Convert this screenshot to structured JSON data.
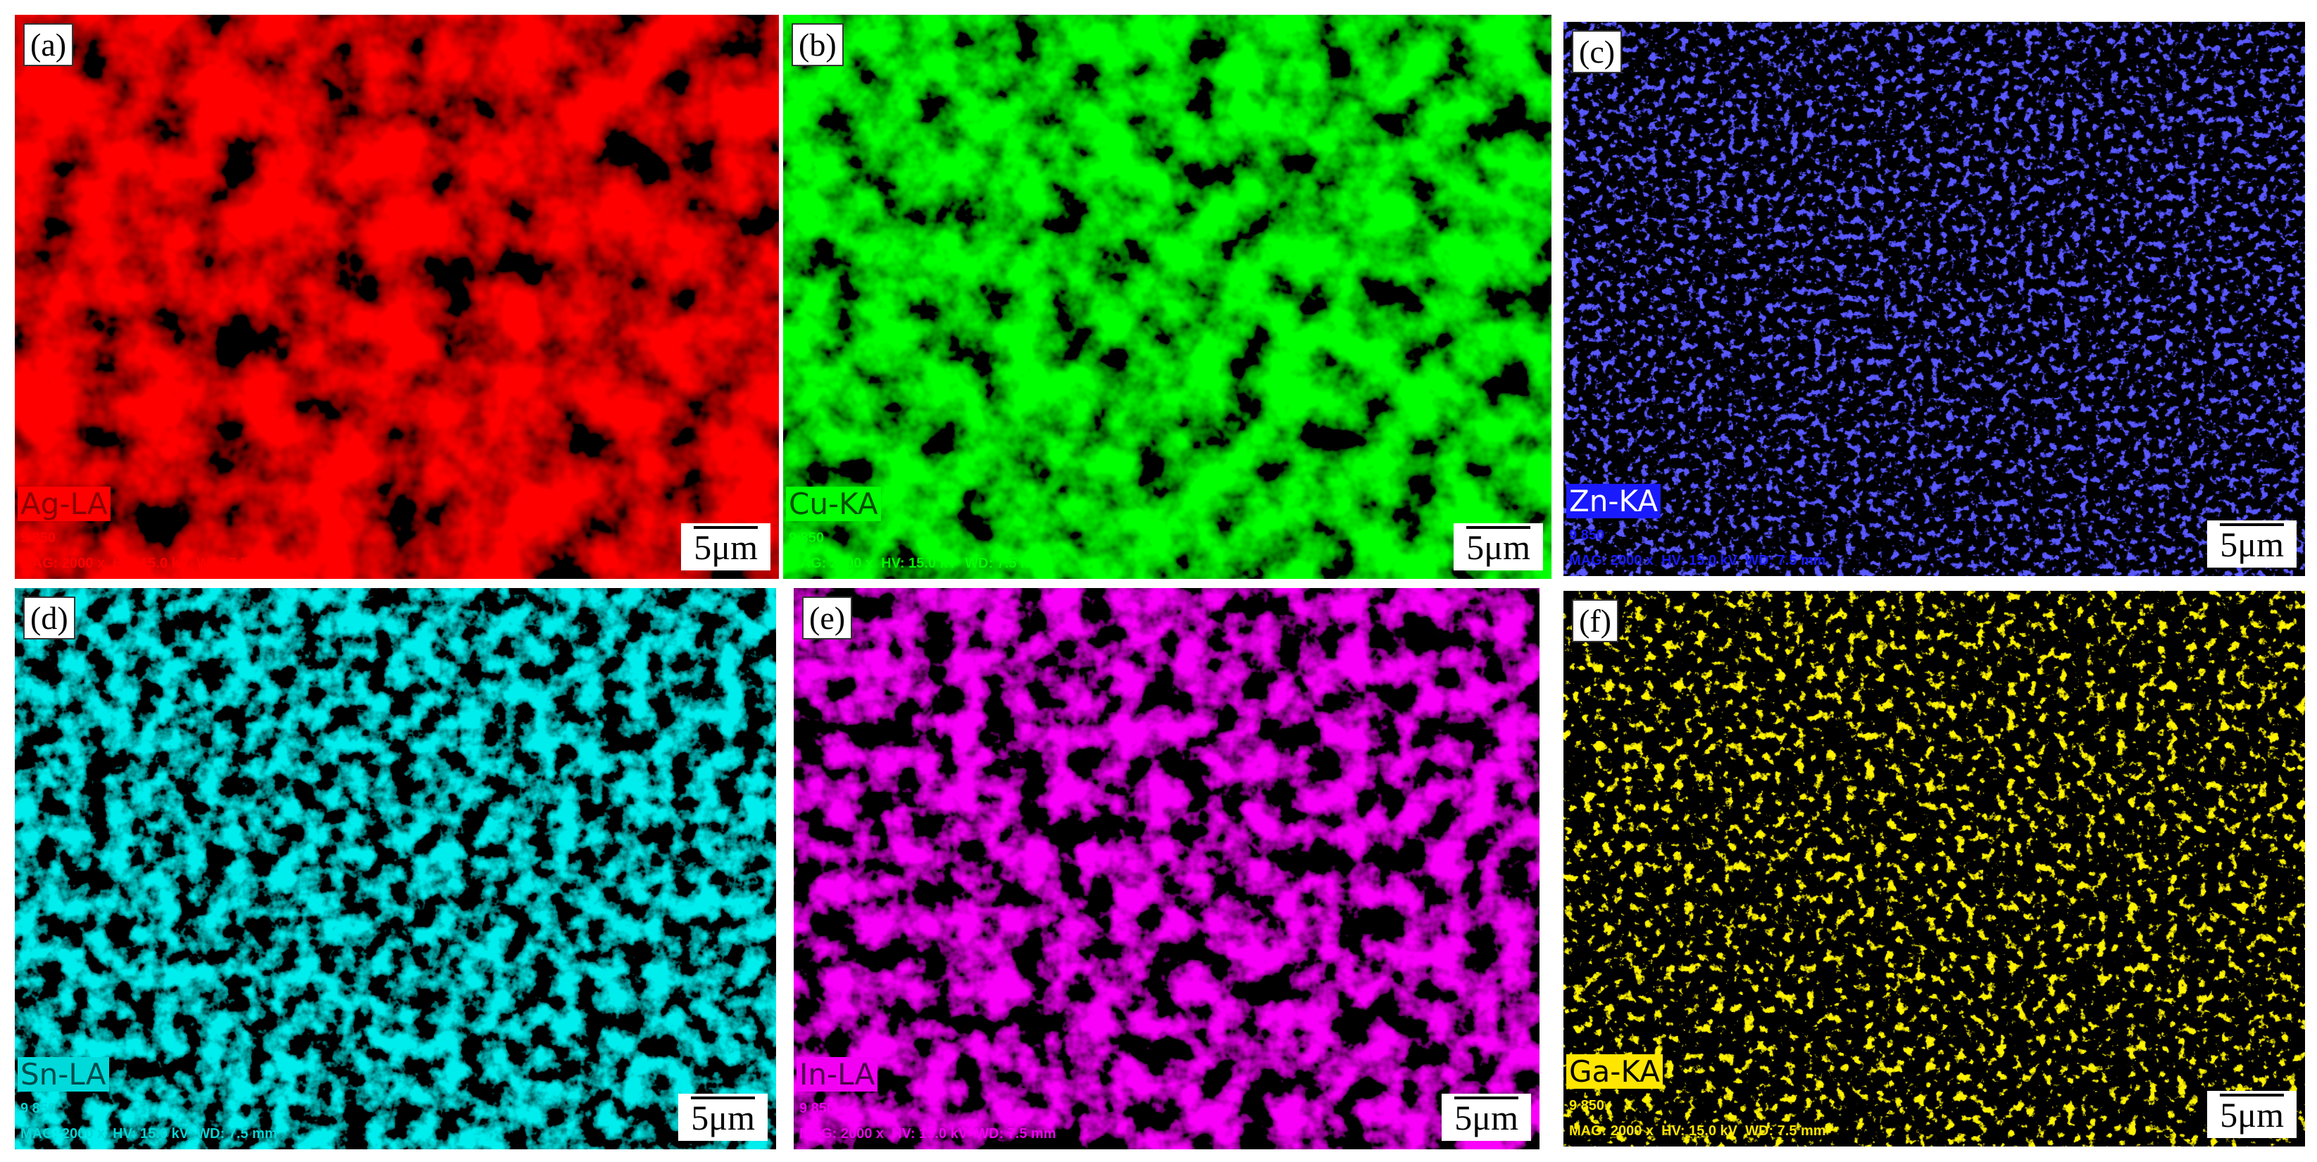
{
  "panels": [
    {
      "label": "(a)",
      "element": "Ag-LA",
      "code": "9 850",
      "info": "MAG: 2000 x  HV: 15.0 kV  WD: 7.5 mm",
      "scale": "5μm"
    },
    {
      "label": "(b)",
      "element": "Cu-KA",
      "code": "9 850",
      "info": "MAG: 2000 x  HV: 15.0 kV  WD: 7.5 mm",
      "scale": "5μm"
    },
    {
      "label": "(c)",
      "element": "Zn-KA",
      "code": "9 850",
      "info": "MAG: 2000 x  HV: 15.0 kV  WD: 7.5 mm",
      "scale": "5μm"
    },
    {
      "label": "(d)",
      "element": "Sn-LA",
      "code": "9 850",
      "info": "MAG: 2000 x  HV: 15.0 kV  WD: 7.5 mm",
      "scale": "5μm"
    },
    {
      "label": "(e)",
      "element": "In-LA",
      "code": "9 850",
      "info": "MAG: 2000 x  HV: 15.0 kV  WD: 7.5 mm",
      "scale": "5μm"
    },
    {
      "label": "(f)",
      "element": "Ga-KA",
      "code": "9 850",
      "info": "MAG: 2000 x  HV: 15.0 kV  WD: 7.5 mm",
      "scale": "5μm"
    }
  ]
}
